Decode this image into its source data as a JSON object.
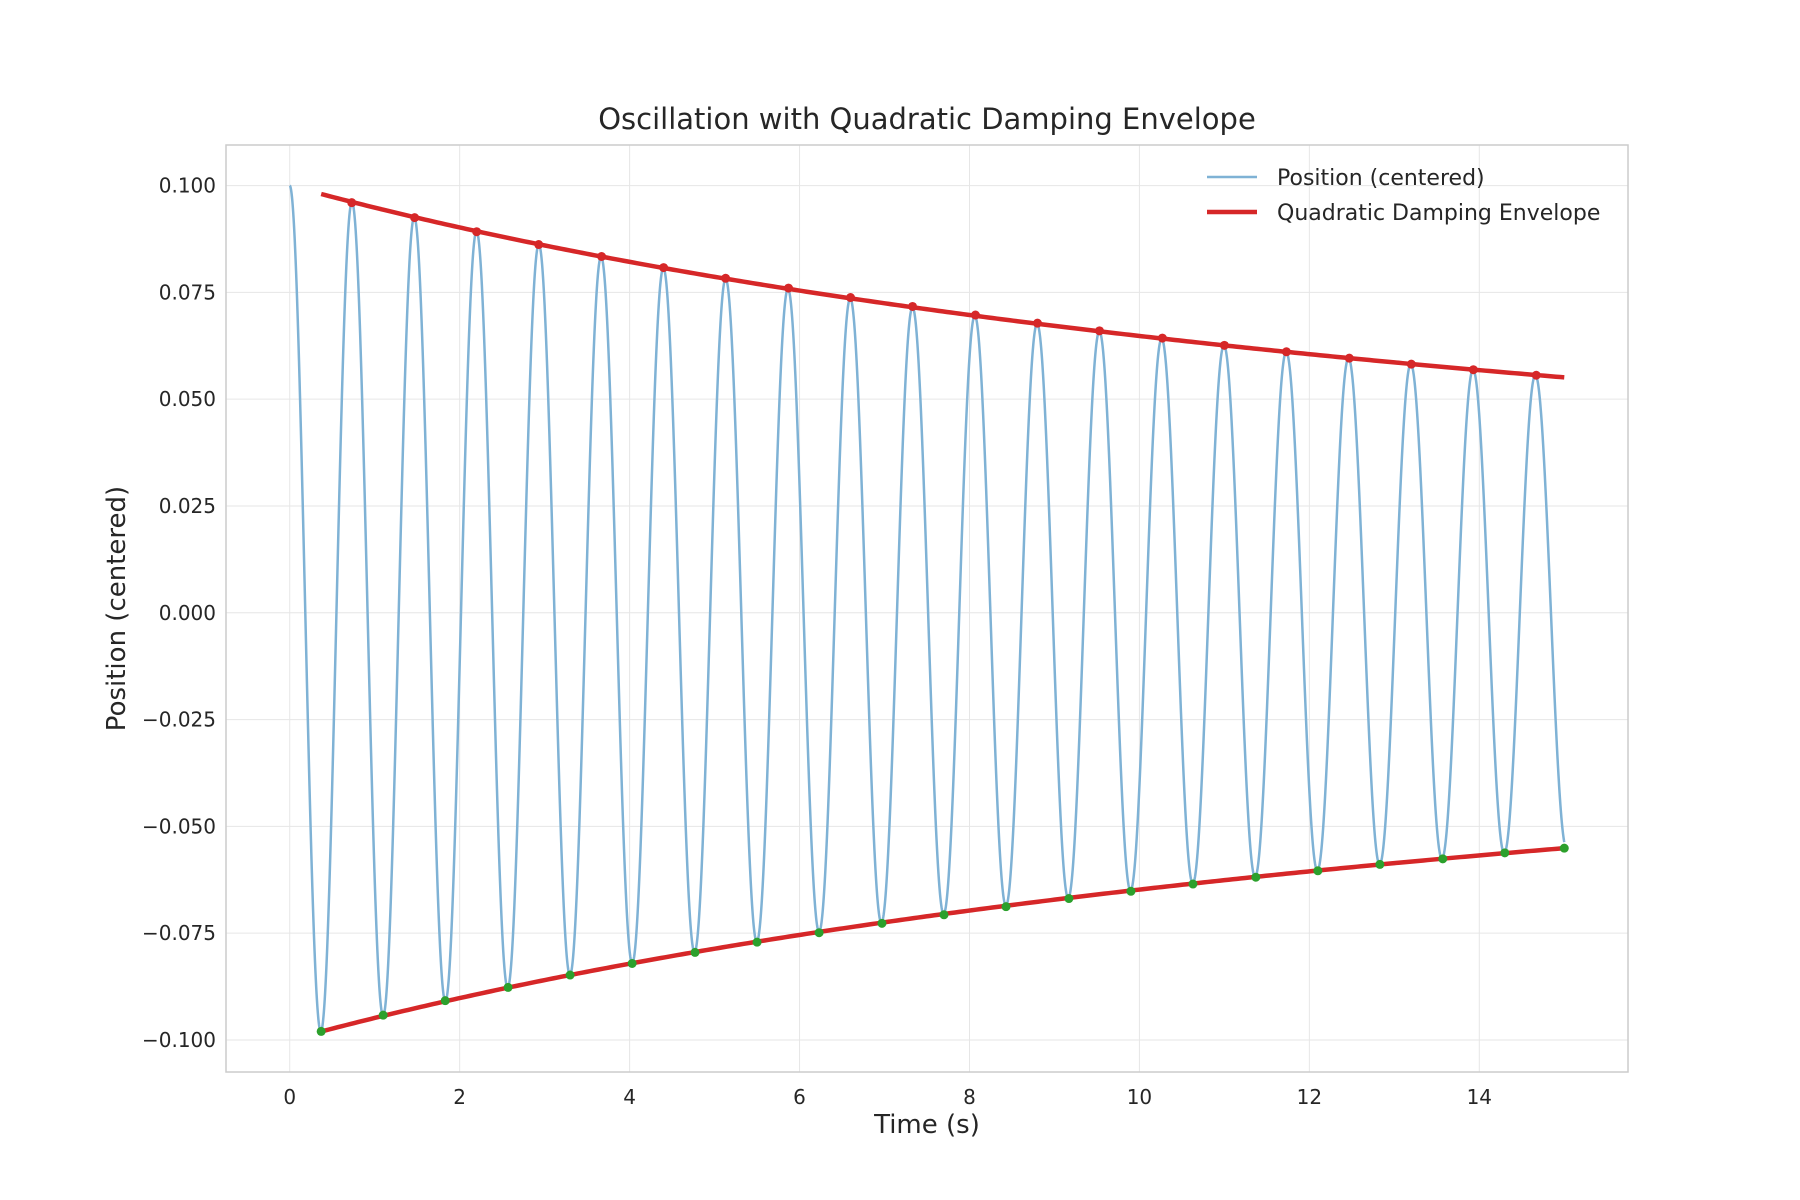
{
  "chart_data": {
    "type": "line",
    "title": "Oscillation with Quadratic Damping Envelope",
    "xlabel": "Time (s)",
    "ylabel": "Position (centered)",
    "xlim": [
      -0.75,
      15.75
    ],
    "ylim": [
      -0.1075,
      0.1095
    ],
    "xticks": [
      0,
      2,
      4,
      6,
      8,
      10,
      12,
      14
    ],
    "xtick_labels": [
      "0",
      "2",
      "4",
      "6",
      "8",
      "10",
      "12",
      "14"
    ],
    "yticks": [
      0.1,
      0.075,
      0.05,
      0.025,
      0.0,
      -0.025,
      -0.05,
      -0.075,
      -0.1
    ],
    "ytick_labels": [
      "0.100",
      "0.075",
      "0.050",
      "0.025",
      "0.000",
      "−0.025",
      "−0.050",
      "−0.075",
      "−0.100"
    ],
    "grid": true,
    "legend_position": "upper-right",
    "series": [
      {
        "name": "Position (centered)",
        "color": "#7fb2d5",
        "kind": "oscillation",
        "initial_amplitude": 0.1,
        "period_s": 0.733,
        "t_start": 0,
        "t_end": 15
      },
      {
        "name": "Quadratic Damping Envelope",
        "color": "#d62728",
        "kind": "envelope",
        "x": [
          0.37,
          15.0
        ],
        "upper": [
          0.0977,
          0.0551
        ],
        "lower": [
          -0.0977,
          -0.0551
        ]
      }
    ],
    "upper_peaks": {
      "color": "#d62728",
      "x": [
        0.73,
        1.47,
        2.2,
        2.93,
        3.67,
        4.4,
        5.13,
        5.87,
        6.6,
        7.33,
        8.07,
        8.8,
        9.53,
        10.27,
        11.0,
        11.73,
        12.47,
        13.2,
        13.93,
        14.67
      ],
      "y": [
        0.096,
        0.0925,
        0.0892,
        0.0862,
        0.0834,
        0.0808,
        0.0783,
        0.076,
        0.0738,
        0.0717,
        0.0697,
        0.0678,
        0.066,
        0.0643,
        0.0626,
        0.0611,
        0.0596,
        0.0582,
        0.0569,
        0.0556
      ]
    },
    "lower_peaks": {
      "color": "#2ca02c",
      "x": [
        0.37,
        1.1,
        1.83,
        2.57,
        3.3,
        4.03,
        4.77,
        5.5,
        6.23,
        6.97,
        7.7,
        8.43,
        9.17,
        9.9,
        10.63,
        11.37,
        12.1,
        12.83,
        13.57,
        14.3,
        15.0
      ],
      "y": [
        -0.098,
        -0.0942,
        -0.0908,
        -0.0877,
        -0.0848,
        -0.0821,
        -0.0795,
        -0.0771,
        -0.0749,
        -0.0727,
        -0.0707,
        -0.0688,
        -0.0669,
        -0.0652,
        -0.0635,
        -0.0619,
        -0.0604,
        -0.0589,
        -0.0576,
        -0.0562,
        -0.0551
      ]
    }
  }
}
